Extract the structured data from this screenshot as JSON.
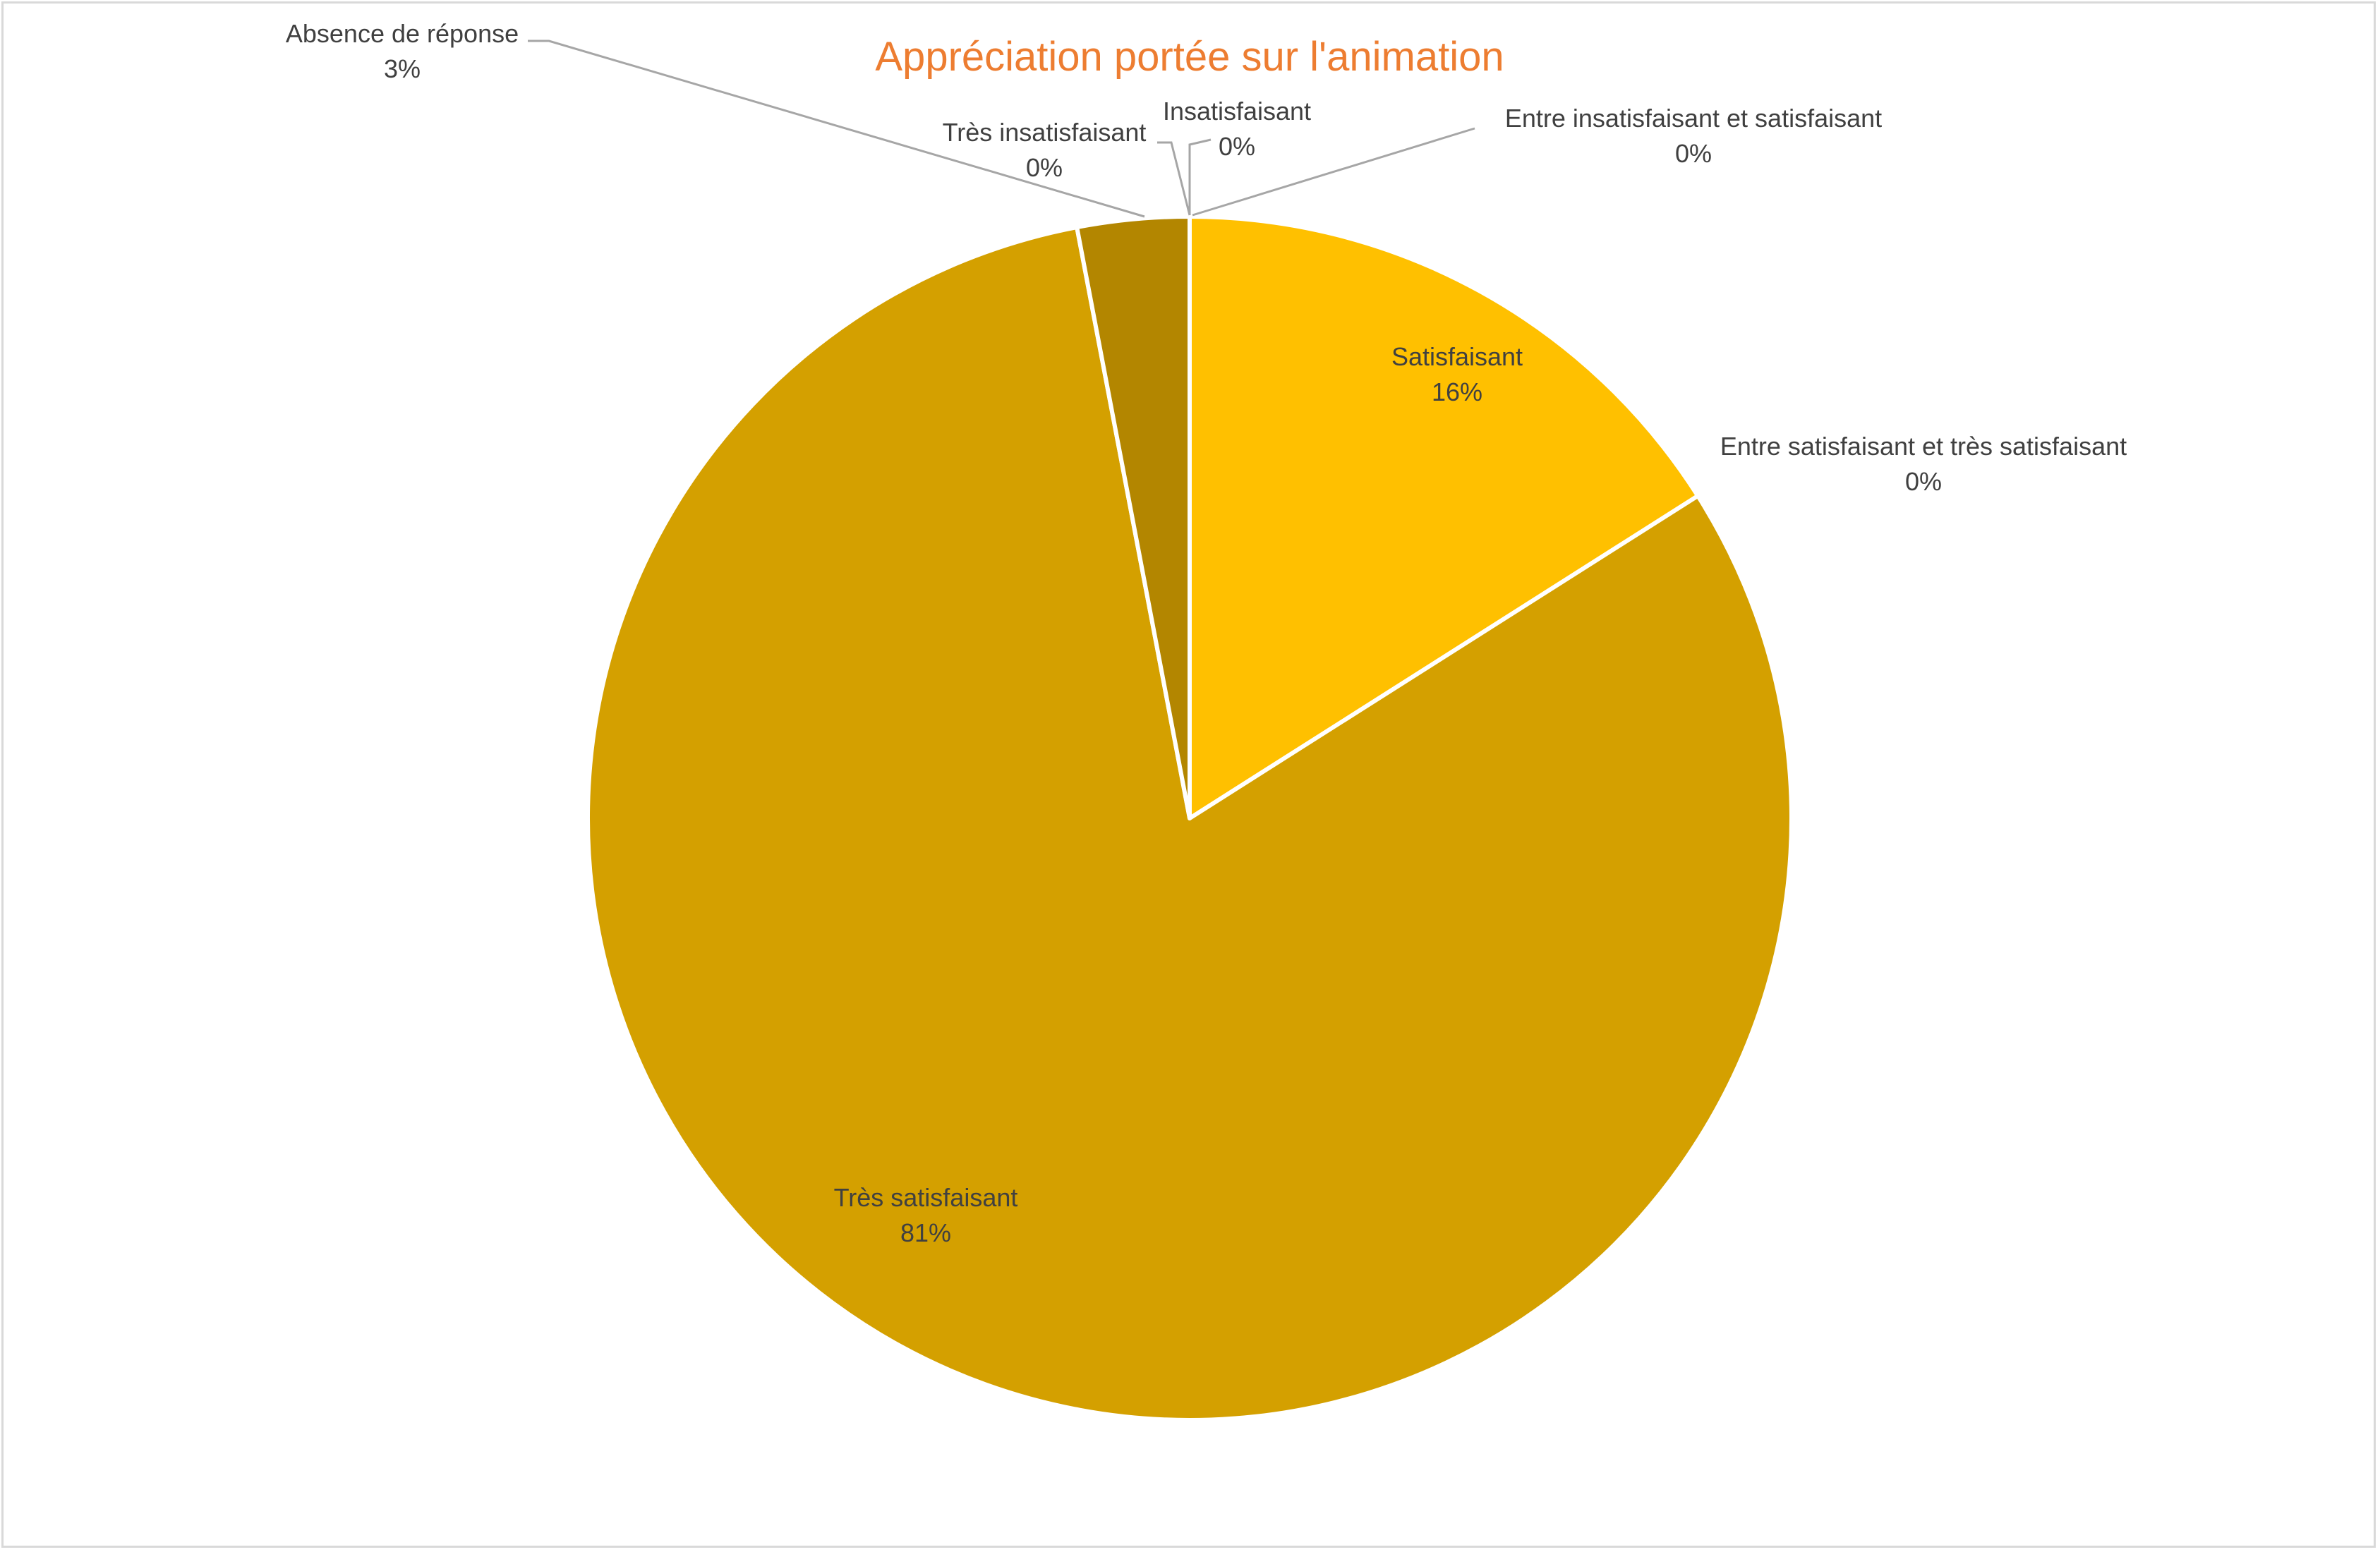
{
  "chart_data": {
    "type": "pie",
    "title": "Appréciation portée sur l'animation",
    "slices": [
      {
        "name": "Insatisfaisant",
        "value": 0,
        "label": "0%",
        "color": "#ffd966"
      },
      {
        "name": "Entre insatisfaisant et satisfaisant",
        "value": 0,
        "label": "0%",
        "color": "#ffe699"
      },
      {
        "name": "Satisfaisant",
        "value": 16,
        "label": "16%",
        "color": "#ffc000"
      },
      {
        "name": "Entre satisfaisant et très satisfaisant",
        "value": 0,
        "label": "0%",
        "color": "#ffcc33"
      },
      {
        "name": "Très satisfaisant",
        "value": 81,
        "label": "81%",
        "color": "#d4a000"
      },
      {
        "name": "Absence de réponse",
        "value": 3,
        "label": "3%",
        "color": "#b38600"
      },
      {
        "name": "Très insatisfaisant",
        "value": 0,
        "label": "0%",
        "color": "#997300"
      }
    ],
    "legend": "none",
    "data_labels": "category name and percentage"
  }
}
